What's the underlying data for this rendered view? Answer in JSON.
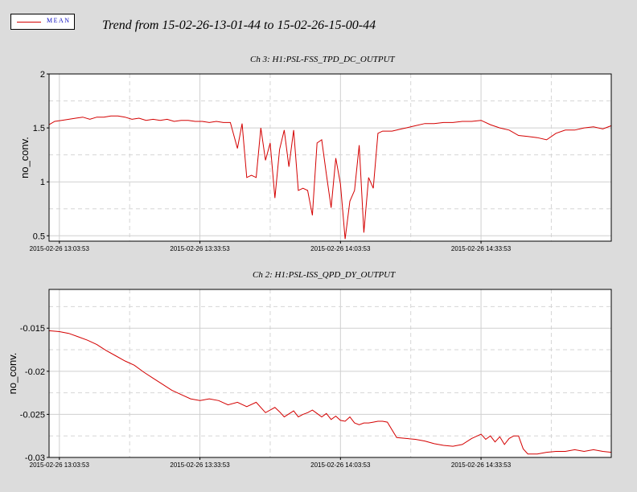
{
  "legend": {
    "label": "MEAN",
    "color": "#d40000"
  },
  "title": "Trend from 15-02-26-13-01-44 to 15-02-26-15-00-44",
  "chart_data": [
    {
      "type": "line",
      "title": "Ch 3: H1:PSL-FSS_TPD_DC_OUTPUT",
      "ylabel": "no_conv.",
      "ylim": [
        0.45,
        2.0
      ],
      "yticks": [
        0.5,
        1,
        1.5,
        2
      ],
      "ytick_labels": [
        "0.5",
        "1",
        "1.5",
        "2"
      ],
      "xlim": [
        -2.2,
        117.8
      ],
      "xticks": [
        0,
        30,
        60,
        90
      ],
      "xtick_labels": [
        "2015-02-26 13:03:53",
        "2015-02-26 13:33:53",
        "2015-02-26 14:03:53",
        "2015-02-26 14:33:53"
      ],
      "grid": true,
      "series": [
        {
          "color": "#d40000",
          "x": [
            -2.2,
            -1,
            0.5,
            2,
            3.5,
            5,
            6.5,
            8,
            9.5,
            11,
            12.5,
            14,
            15.5,
            17,
            18.5,
            20,
            21.5,
            23,
            24.5,
            26,
            27.5,
            29,
            30.5,
            32,
            33.5,
            35,
            36.5,
            38,
            39,
            40,
            41,
            42,
            43,
            44,
            45,
            46,
            47,
            48,
            49,
            50,
            51,
            52,
            53,
            54,
            55,
            56,
            57,
            58,
            59,
            60,
            61,
            62,
            63,
            64,
            65,
            66,
            67,
            68,
            69,
            70,
            71,
            72,
            73,
            74,
            76,
            78,
            80,
            82,
            84,
            86,
            88,
            90,
            92,
            94,
            96,
            98,
            100,
            102,
            104,
            106,
            108,
            110,
            112,
            114,
            116,
            117.8
          ],
          "y": [
            1.53,
            1.56,
            1.57,
            1.58,
            1.59,
            1.6,
            1.58,
            1.6,
            1.6,
            1.61,
            1.61,
            1.6,
            1.58,
            1.59,
            1.57,
            1.58,
            1.57,
            1.58,
            1.56,
            1.57,
            1.57,
            1.56,
            1.56,
            1.55,
            1.56,
            1.55,
            1.55,
            1.31,
            1.54,
            1.04,
            1.06,
            1.04,
            1.5,
            1.2,
            1.36,
            0.85,
            1.3,
            1.48,
            1.14,
            1.48,
            0.92,
            0.94,
            0.92,
            0.69,
            1.36,
            1.39,
            1.07,
            0.76,
            1.22,
            0.98,
            0.47,
            0.82,
            0.92,
            1.34,
            0.53,
            1.04,
            0.94,
            1.45,
            1.47,
            1.47,
            1.47,
            1.48,
            1.49,
            1.5,
            1.52,
            1.54,
            1.54,
            1.55,
            1.55,
            1.56,
            1.56,
            1.57,
            1.53,
            1.5,
            1.48,
            1.43,
            1.42,
            1.41,
            1.39,
            1.45,
            1.48,
            1.48,
            1.5,
            1.51,
            1.49,
            1.52
          ]
        }
      ]
    },
    {
      "type": "line",
      "title": "Ch 2: H1:PSL-ISS_QPD_DY_OUTPUT",
      "ylabel": "no_conv.",
      "ylim": [
        -0.03,
        -0.0105
      ],
      "yticks": [
        -0.03,
        -0.025,
        -0.02,
        -0.015
      ],
      "ytick_labels": [
        "-0.03",
        "-0.025",
        "-0.02",
        "-0.015"
      ],
      "xlim": [
        -2.2,
        117.8
      ],
      "xticks": [
        0,
        30,
        60,
        90
      ],
      "xtick_labels": [
        "2015-02-26 13:03:53",
        "2015-02-26 13:33:53",
        "2015-02-26 14:03:53",
        "2015-02-26 14:33:53"
      ],
      "grid": true,
      "series": [
        {
          "color": "#d40000",
          "x": [
            -2.2,
            0,
            2,
            4,
            6,
            8,
            10,
            12,
            14,
            16,
            18,
            20,
            22,
            24,
            26,
            28,
            30,
            32,
            34,
            36,
            38,
            40,
            42,
            44,
            46,
            47,
            48,
            50,
            51,
            52,
            53,
            54,
            55,
            56,
            57,
            58,
            59,
            60,
            61,
            62,
            63,
            64,
            65,
            66,
            67,
            68,
            69,
            70,
            72,
            74,
            76,
            78,
            80,
            82,
            84,
            86,
            88,
            90,
            91,
            92,
            93,
            94,
            95,
            96,
            97,
            98,
            99,
            100,
            101,
            102,
            104,
            106,
            108,
            110,
            112,
            114,
            116,
            117.8
          ],
          "y": [
            -0.0153,
            -0.0154,
            -0.0156,
            -0.016,
            -0.0164,
            -0.0169,
            -0.0176,
            -0.0182,
            -0.0188,
            -0.0193,
            -0.0201,
            -0.0208,
            -0.0215,
            -0.0222,
            -0.0227,
            -0.0232,
            -0.0234,
            -0.0232,
            -0.0234,
            -0.0239,
            -0.0236,
            -0.0241,
            -0.0236,
            -0.0248,
            -0.0242,
            -0.0247,
            -0.0253,
            -0.0246,
            -0.0253,
            -0.025,
            -0.0248,
            -0.0245,
            -0.0249,
            -0.0253,
            -0.0249,
            -0.0256,
            -0.0252,
            -0.0257,
            -0.0258,
            -0.0253,
            -0.026,
            -0.0262,
            -0.026,
            -0.026,
            -0.0259,
            -0.0258,
            -0.0258,
            -0.0259,
            -0.0277,
            -0.0278,
            -0.0279,
            -0.0281,
            -0.0284,
            -0.0286,
            -0.0287,
            -0.0285,
            -0.0278,
            -0.0273,
            -0.0279,
            -0.0275,
            -0.0282,
            -0.0276,
            -0.0285,
            -0.0278,
            -0.0275,
            -0.0275,
            -0.029,
            -0.0296,
            -0.0296,
            -0.0296,
            -0.0294,
            -0.0293,
            -0.0293,
            -0.0291,
            -0.0293,
            -0.0291,
            -0.0293,
            -0.0294
          ]
        }
      ]
    }
  ]
}
